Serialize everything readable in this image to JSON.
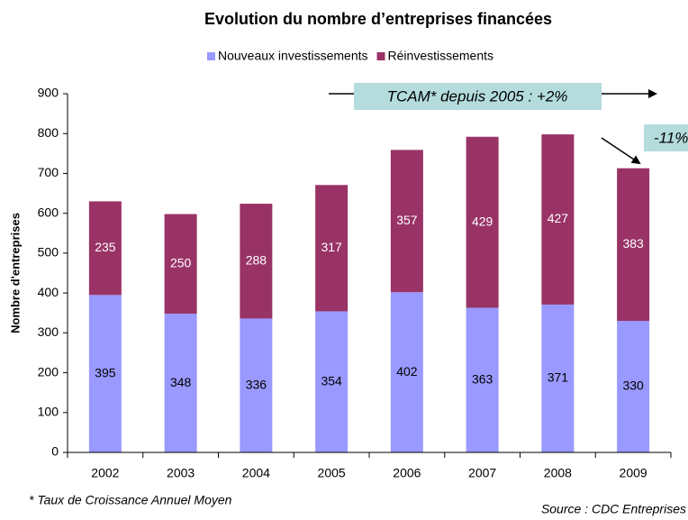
{
  "chart_data": {
    "type": "stacked_bar",
    "title": "Evolution du nombre d’entreprises financées",
    "y_label": "Nombre d'entreprises",
    "categories": [
      "2002",
      "2003",
      "2004",
      "2005",
      "2006",
      "2007",
      "2008",
      "2009"
    ],
    "series": [
      {
        "name": "Nouveaux investissements",
        "color": "#9999ff",
        "values": [
          395,
          348,
          336,
          354,
          402,
          363,
          371,
          330
        ]
      },
      {
        "name": "Réinvestissements",
        "color": "#993366",
        "values": [
          235,
          250,
          288,
          317,
          357,
          429,
          427,
          383
        ]
      }
    ],
    "ylim": [
      0,
      900
    ],
    "yticks": [
      0,
      100,
      200,
      300,
      400,
      500,
      600,
      700,
      800,
      900
    ],
    "legend": "top",
    "annotations": [
      "TCAM* depuis 2005 : +2%",
      "-11%"
    ],
    "footnote": "* Taux de Croissance Annuel Moyen",
    "source": "Source : CDC Entreprises"
  }
}
